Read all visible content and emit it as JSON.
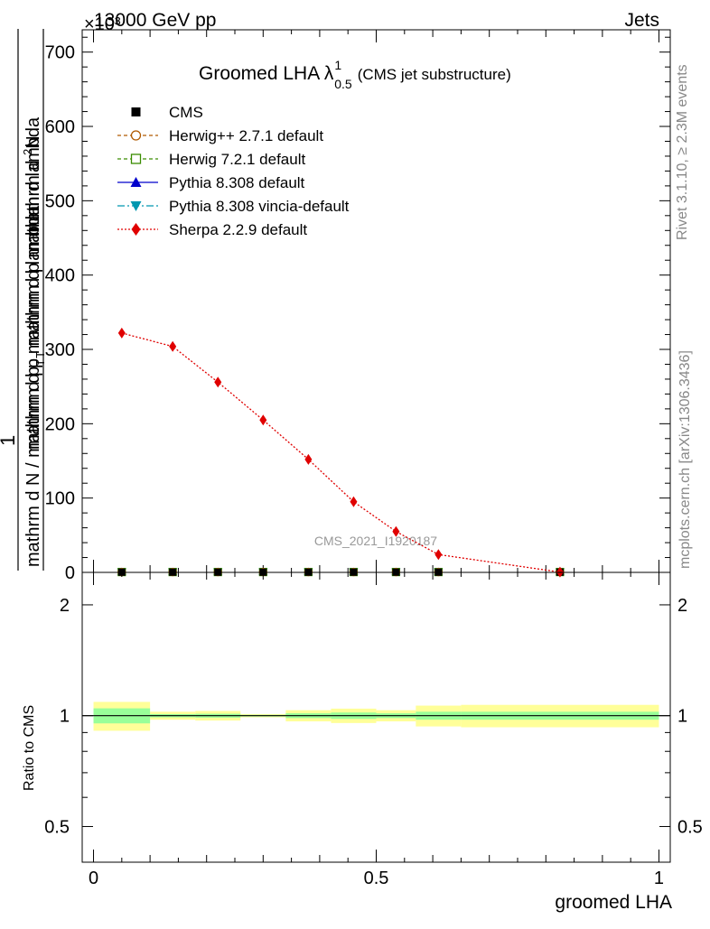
{
  "header": {
    "left": "13000 GeV pp",
    "right": "Jets",
    "exponent": "×10³"
  },
  "side_labels": {
    "rivet": "Rivet 3.1.10, ≥ 2.3M events",
    "mcplots": "mcplots.cern.ch [arXiv:1306.3436]"
  },
  "watermark": "CMS_2021_I1920187",
  "chart_data": {
    "type": "line",
    "title_main": "Groomed LHA",
    "title_symbol": "λ",
    "title_sup": "1",
    "title_sub": "0.5",
    "title_note": "(CMS jet substructure)",
    "xlabel": "groomed LHA",
    "ylabel_lines": [
      "1",
      "mathrm d N / mathrm d p_T mathrm d lambda",
      "mathrm d^2N",
      "mathrm d p_T mathrm d lambda"
    ],
    "ylabel_top_1": "mathrm d",
    "ylabel_top_sup": "2",
    "ylabel_top_2": "N",
    "ylabel_bottom_1": "mathrm d p",
    "ylabel_bottom_sub": "T",
    "ylabel_bottom_2": " mathrm d lambda",
    "ylabel_numer": "1",
    "ylabel_denom_1": "mathrm d N / mathrm d p",
    "ylabel_denom_sub": "T",
    "ylabel_denom_2": "mathrm d p",
    "ylabel_denom_3": "mathrm d lambda",
    "xlim": [
      -0.02,
      1.02
    ],
    "ylim": [
      0,
      730
    ],
    "x_ticks": [
      0,
      0.5,
      1
    ],
    "x_tick_labels": [
      "0",
      "0.5",
      "1"
    ],
    "y_ticks": [
      0,
      100,
      200,
      300,
      400,
      500,
      600,
      700
    ],
    "y_tick_labels": [
      "0",
      "100",
      "200",
      "300",
      "400",
      "500",
      "600",
      "700"
    ],
    "bins": [
      [
        0.0,
        0.1
      ],
      [
        0.1,
        0.18
      ],
      [
        0.18,
        0.26
      ],
      [
        0.26,
        0.34
      ],
      [
        0.34,
        0.42
      ],
      [
        0.42,
        0.5
      ],
      [
        0.5,
        0.57
      ],
      [
        0.57,
        0.65
      ],
      [
        0.65,
        1.0
      ]
    ],
    "x": [
      0.05,
      0.14,
      0.22,
      0.3,
      0.38,
      0.46,
      0.535,
      0.61,
      0.825
    ],
    "legend": [
      {
        "label": "CMS",
        "color": "#000000",
        "marker": "square",
        "line": "none"
      },
      {
        "label": "Herwig++ 2.7.1 default",
        "color": "#b05a00",
        "marker": "circle-open",
        "line": "dashed"
      },
      {
        "label": "Herwig 7.2.1 default",
        "color": "#3a8c00",
        "marker": "square-open",
        "line": "dashed"
      },
      {
        "label": "Pythia 8.308 default",
        "color": "#0000cc",
        "marker": "triangle-up",
        "line": "solid"
      },
      {
        "label": "Pythia 8.308 vincia-default",
        "color": "#0097b0",
        "marker": "triangle-down",
        "line": "dashdot"
      },
      {
        "label": "Sherpa 2.2.9 default",
        "color": "#e00000",
        "marker": "diamond",
        "line": "dotted"
      }
    ],
    "series": [
      {
        "name": "CMS",
        "values": [
          0.3,
          0.3,
          0.3,
          0.3,
          0.3,
          0.3,
          0.3,
          0.3,
          0.3
        ]
      },
      {
        "name": "Sherpa 2.2.9 default",
        "values": [
          322,
          304,
          256,
          205,
          152,
          95,
          55,
          24,
          0.4
        ]
      }
    ],
    "ratio": {
      "ylabel": "Ratio to CMS",
      "ylim": [
        0.4,
        2.45
      ],
      "y_ticks": [
        0.5,
        1,
        2
      ],
      "y_tick_labels": [
        "0.5",
        "1",
        "2"
      ],
      "inner_band": [
        [
          0.953,
          1.047
        ],
        [
          0.99,
          1.01
        ],
        [
          0.988,
          1.012
        ],
        [
          0.995,
          1.005
        ],
        [
          0.985,
          1.015
        ],
        [
          0.98,
          1.02
        ],
        [
          0.985,
          1.015
        ],
        [
          0.975,
          1.025
        ],
        [
          0.975,
          1.025
        ]
      ],
      "outer_band": [
        [
          0.91,
          1.09
        ],
        [
          0.975,
          1.025
        ],
        [
          0.97,
          1.03
        ],
        [
          0.99,
          1.01
        ],
        [
          0.965,
          1.035
        ],
        [
          0.955,
          1.045
        ],
        [
          0.965,
          1.035
        ],
        [
          0.935,
          1.065
        ],
        [
          0.93,
          1.07
        ]
      ]
    }
  }
}
